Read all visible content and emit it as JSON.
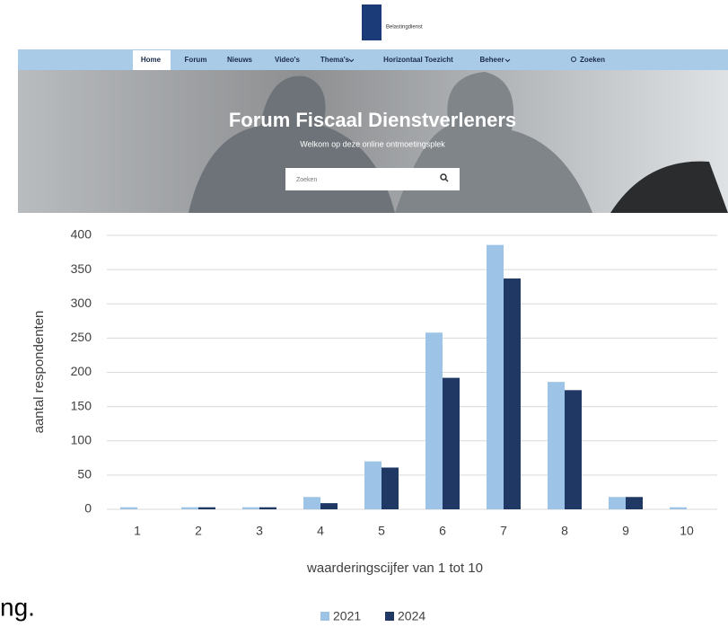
{
  "header": {
    "logo_text": "Belastingdienst",
    "nav": [
      "Home",
      "Forum",
      "Nieuws",
      "Video's",
      "Thema's",
      "Horizontaal Toezicht",
      "Beheer",
      "Zoeken"
    ],
    "hero_title": "Forum Fiscaal Dienstverleners",
    "hero_subtitle": "Welkom op deze online ontmoetingsplek",
    "search_placeholder": "Zoeken"
  },
  "chart_data": {
    "type": "bar",
    "x_label": "waarderingscijfer van 1 tot 10",
    "y_label": "aantal respondenten",
    "categories": [
      "1",
      "2",
      "3",
      "4",
      "5",
      "6",
      "7",
      "8",
      "9",
      "10"
    ],
    "series": [
      {
        "name": "2021",
        "color": "#9dc3e6",
        "values": [
          3,
          3,
          3,
          18,
          70,
          258,
          386,
          186,
          18,
          3
        ]
      },
      {
        "name": "2024",
        "color": "#1f3864",
        "values": [
          0,
          3,
          3,
          9,
          61,
          192,
          337,
          174,
          18,
          0
        ]
      }
    ],
    "ylim": [
      0,
      400
    ],
    "yticks": [
      0,
      50,
      100,
      150,
      200,
      250,
      300,
      350,
      400
    ],
    "grid": true,
    "legend": "bottom"
  },
  "fragment": "ng."
}
